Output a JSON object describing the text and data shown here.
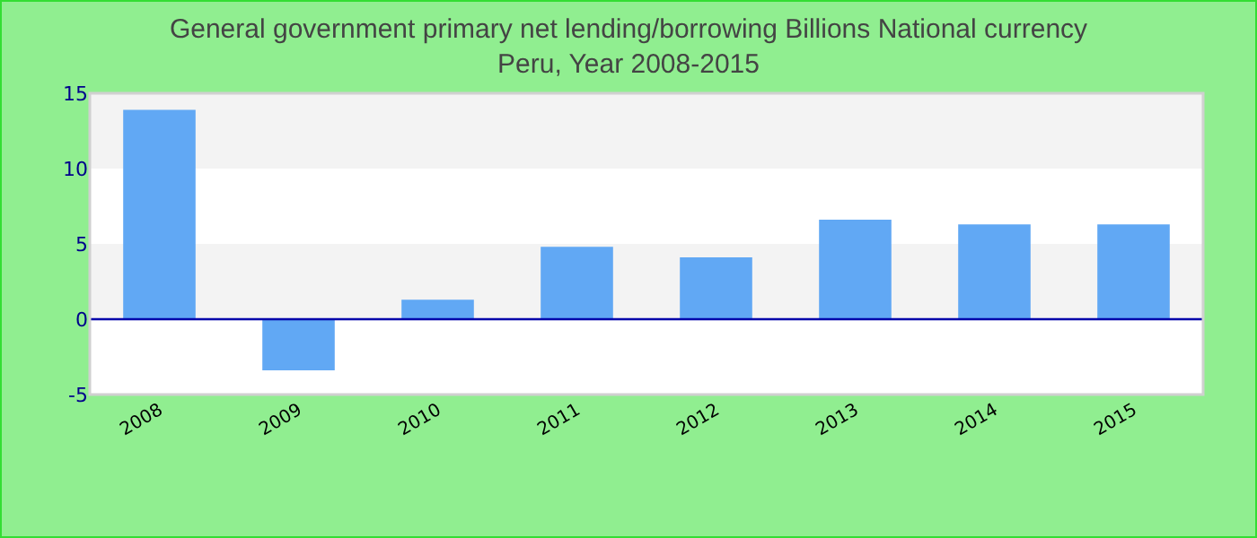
{
  "chart_data": {
    "type": "bar",
    "title": "General government primary net lending/borrowing Billions National currency\nPeru, Year 2008-2015",
    "categories": [
      "2008",
      "2009",
      "2010",
      "2011",
      "2012",
      "2013",
      "2014",
      "2015"
    ],
    "values": [
      13.9,
      -3.4,
      1.3,
      4.8,
      4.1,
      6.6,
      6.3,
      6.3
    ],
    "color": "#61a8f4",
    "ref_lines": [
      {
        "axis": "y",
        "value": 0,
        "color": "#0000aa"
      }
    ],
    "ylim": [
      -5,
      15
    ],
    "yticks": [
      -5,
      0,
      5,
      10,
      15
    ],
    "bands": [
      {
        "axis": "y",
        "from": 0,
        "to": 5,
        "color": "#f3f3f3"
      },
      {
        "axis": "y",
        "from": 10,
        "to": 15,
        "color": "#f3f3f3"
      }
    ]
  }
}
